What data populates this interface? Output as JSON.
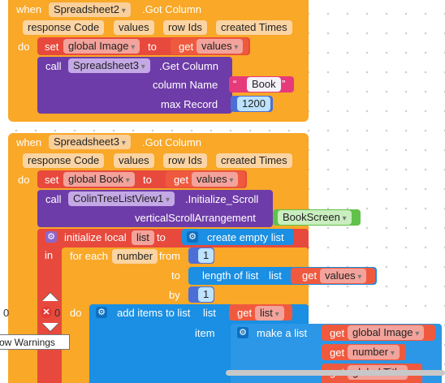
{
  "event1": {
    "when": "when",
    "component": "Spreadsheet2",
    "event": ".Got Column",
    "params": [
      "response Code",
      "values",
      "row Ids",
      "created Times"
    ],
    "do": "do",
    "set": "set",
    "set_var": "global Image",
    "to": "to",
    "get": "get",
    "get_var": "values",
    "call": "call",
    "call_component": "Spreadsheet3",
    "call_method": ".Get Column",
    "arg1_label": "column Name",
    "arg1_value": "Book",
    "arg2_label": "max Record",
    "arg2_value": "1200"
  },
  "event2": {
    "when": "when",
    "component": "Spreadsheet3",
    "event": ".Got Column",
    "params": [
      "response Code",
      "values",
      "row Ids",
      "created Times"
    ],
    "do": "do",
    "set": "set",
    "set_var": "global Book",
    "to": "to",
    "get": "get",
    "get_var": "values",
    "call": "call",
    "call_component": "ColinTreeListView1",
    "call_method": ".Initialize_Scroll",
    "arg_label": "verticalScrollArrangement",
    "arg_value": "BookScreen",
    "init_local": "initialize local",
    "local_name": "list",
    "init_to": "to",
    "create_list": "create empty list",
    "in": "in",
    "for_each": "for each",
    "loop_var": "number",
    "from": "from",
    "from_val": "1",
    "to_label": "to",
    "length_of_list": "length of list",
    "list_label": "list",
    "len_get": "get",
    "len_get_var": "values",
    "by": "by",
    "by_val": "1",
    "add_items": "add items to list",
    "add_list_label": "list",
    "add_get": "get",
    "add_get_var": "list",
    "item_label": "item",
    "make_list": "make a list",
    "ml_get1": "get",
    "ml_get1_var": "global Image",
    "ml_get2": "get",
    "ml_get2_var": "number",
    "ml_get3": "get",
    "ml_get3_var": "global Title"
  },
  "workspace": {
    "warnings_label": "ow Warnings",
    "warning_count": "0",
    "error_count": "0"
  }
}
